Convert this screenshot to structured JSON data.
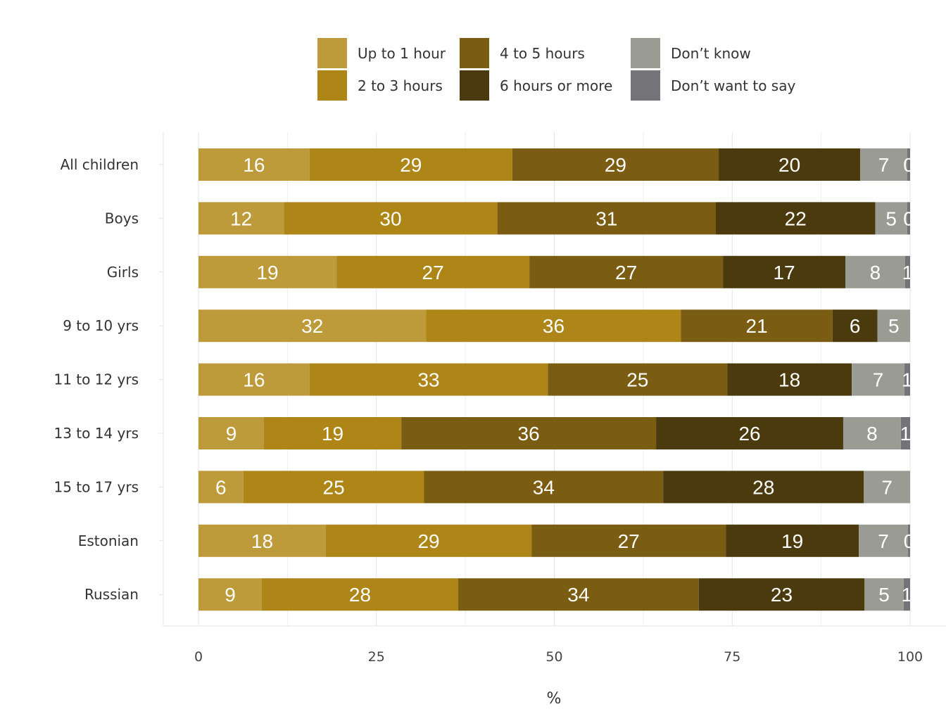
{
  "chart_data": {
    "type": "bar",
    "orientation": "horizontal",
    "stacked": true,
    "categories": [
      "All children",
      "Boys",
      "Girls",
      "9 to 10 yrs",
      "11 to 12 yrs",
      "13 to 14 yrs",
      "15 to 17 yrs",
      "Estonian",
      "Russian"
    ],
    "series": [
      {
        "name": "Up to 1 hour",
        "color": "#bd9a3a",
        "values": [
          15.6,
          12.0,
          19.4,
          32.0,
          15.6,
          9.2,
          6.3,
          17.9,
          8.9
        ]
      },
      {
        "name": "2 to 3 hours",
        "color": "#ad8617",
        "values": [
          28.5,
          30.0,
          27.1,
          35.8,
          33.5,
          19.3,
          25.4,
          28.9,
          27.6
        ]
      },
      {
        "name": "4 to 5 hours",
        "color": "#7a5d12",
        "values": [
          29.0,
          30.7,
          27.2,
          21.3,
          25.2,
          35.8,
          33.6,
          27.3,
          33.8
        ]
      },
      {
        "name": "6 hours or more",
        "color": "#4a3a0e",
        "values": [
          19.9,
          22.4,
          17.2,
          6.3,
          17.5,
          26.3,
          28.2,
          18.7,
          23.3
        ]
      },
      {
        "name": "Don’t know",
        "color": "#9a9c94",
        "values": [
          6.6,
          4.5,
          8.4,
          4.6,
          7.4,
          8.1,
          6.5,
          6.9,
          5.5
        ]
      },
      {
        "name": "Don’t want to say",
        "color": "#737378",
        "values": [
          0.4,
          0.4,
          0.7,
          0,
          0.8,
          1.3,
          0,
          0.3,
          0.9
        ]
      }
    ],
    "data_labels": [
      [
        "16",
        "29",
        "29",
        "20",
        "7",
        "0"
      ],
      [
        "12",
        "30",
        "31",
        "22",
        "5",
        "0"
      ],
      [
        "19",
        "27",
        "27",
        "17",
        "8",
        "1"
      ],
      [
        "32",
        "36",
        "21",
        "6",
        "5",
        ""
      ],
      [
        "16",
        "33",
        "25",
        "18",
        "7",
        "1"
      ],
      [
        "9",
        "19",
        "36",
        "26",
        "8",
        "1"
      ],
      [
        "6",
        "25",
        "34",
        "28",
        "7",
        ""
      ],
      [
        "18",
        "29",
        "27",
        "19",
        "7",
        "0"
      ],
      [
        "9",
        "28",
        "34",
        "23",
        "5",
        "1"
      ]
    ],
    "xlim": [
      0,
      100
    ],
    "xticks": [
      0,
      25,
      50,
      75,
      100
    ],
    "xlabel": "%",
    "ylabel": "",
    "title": "",
    "grid": true,
    "legend_position": "top"
  }
}
